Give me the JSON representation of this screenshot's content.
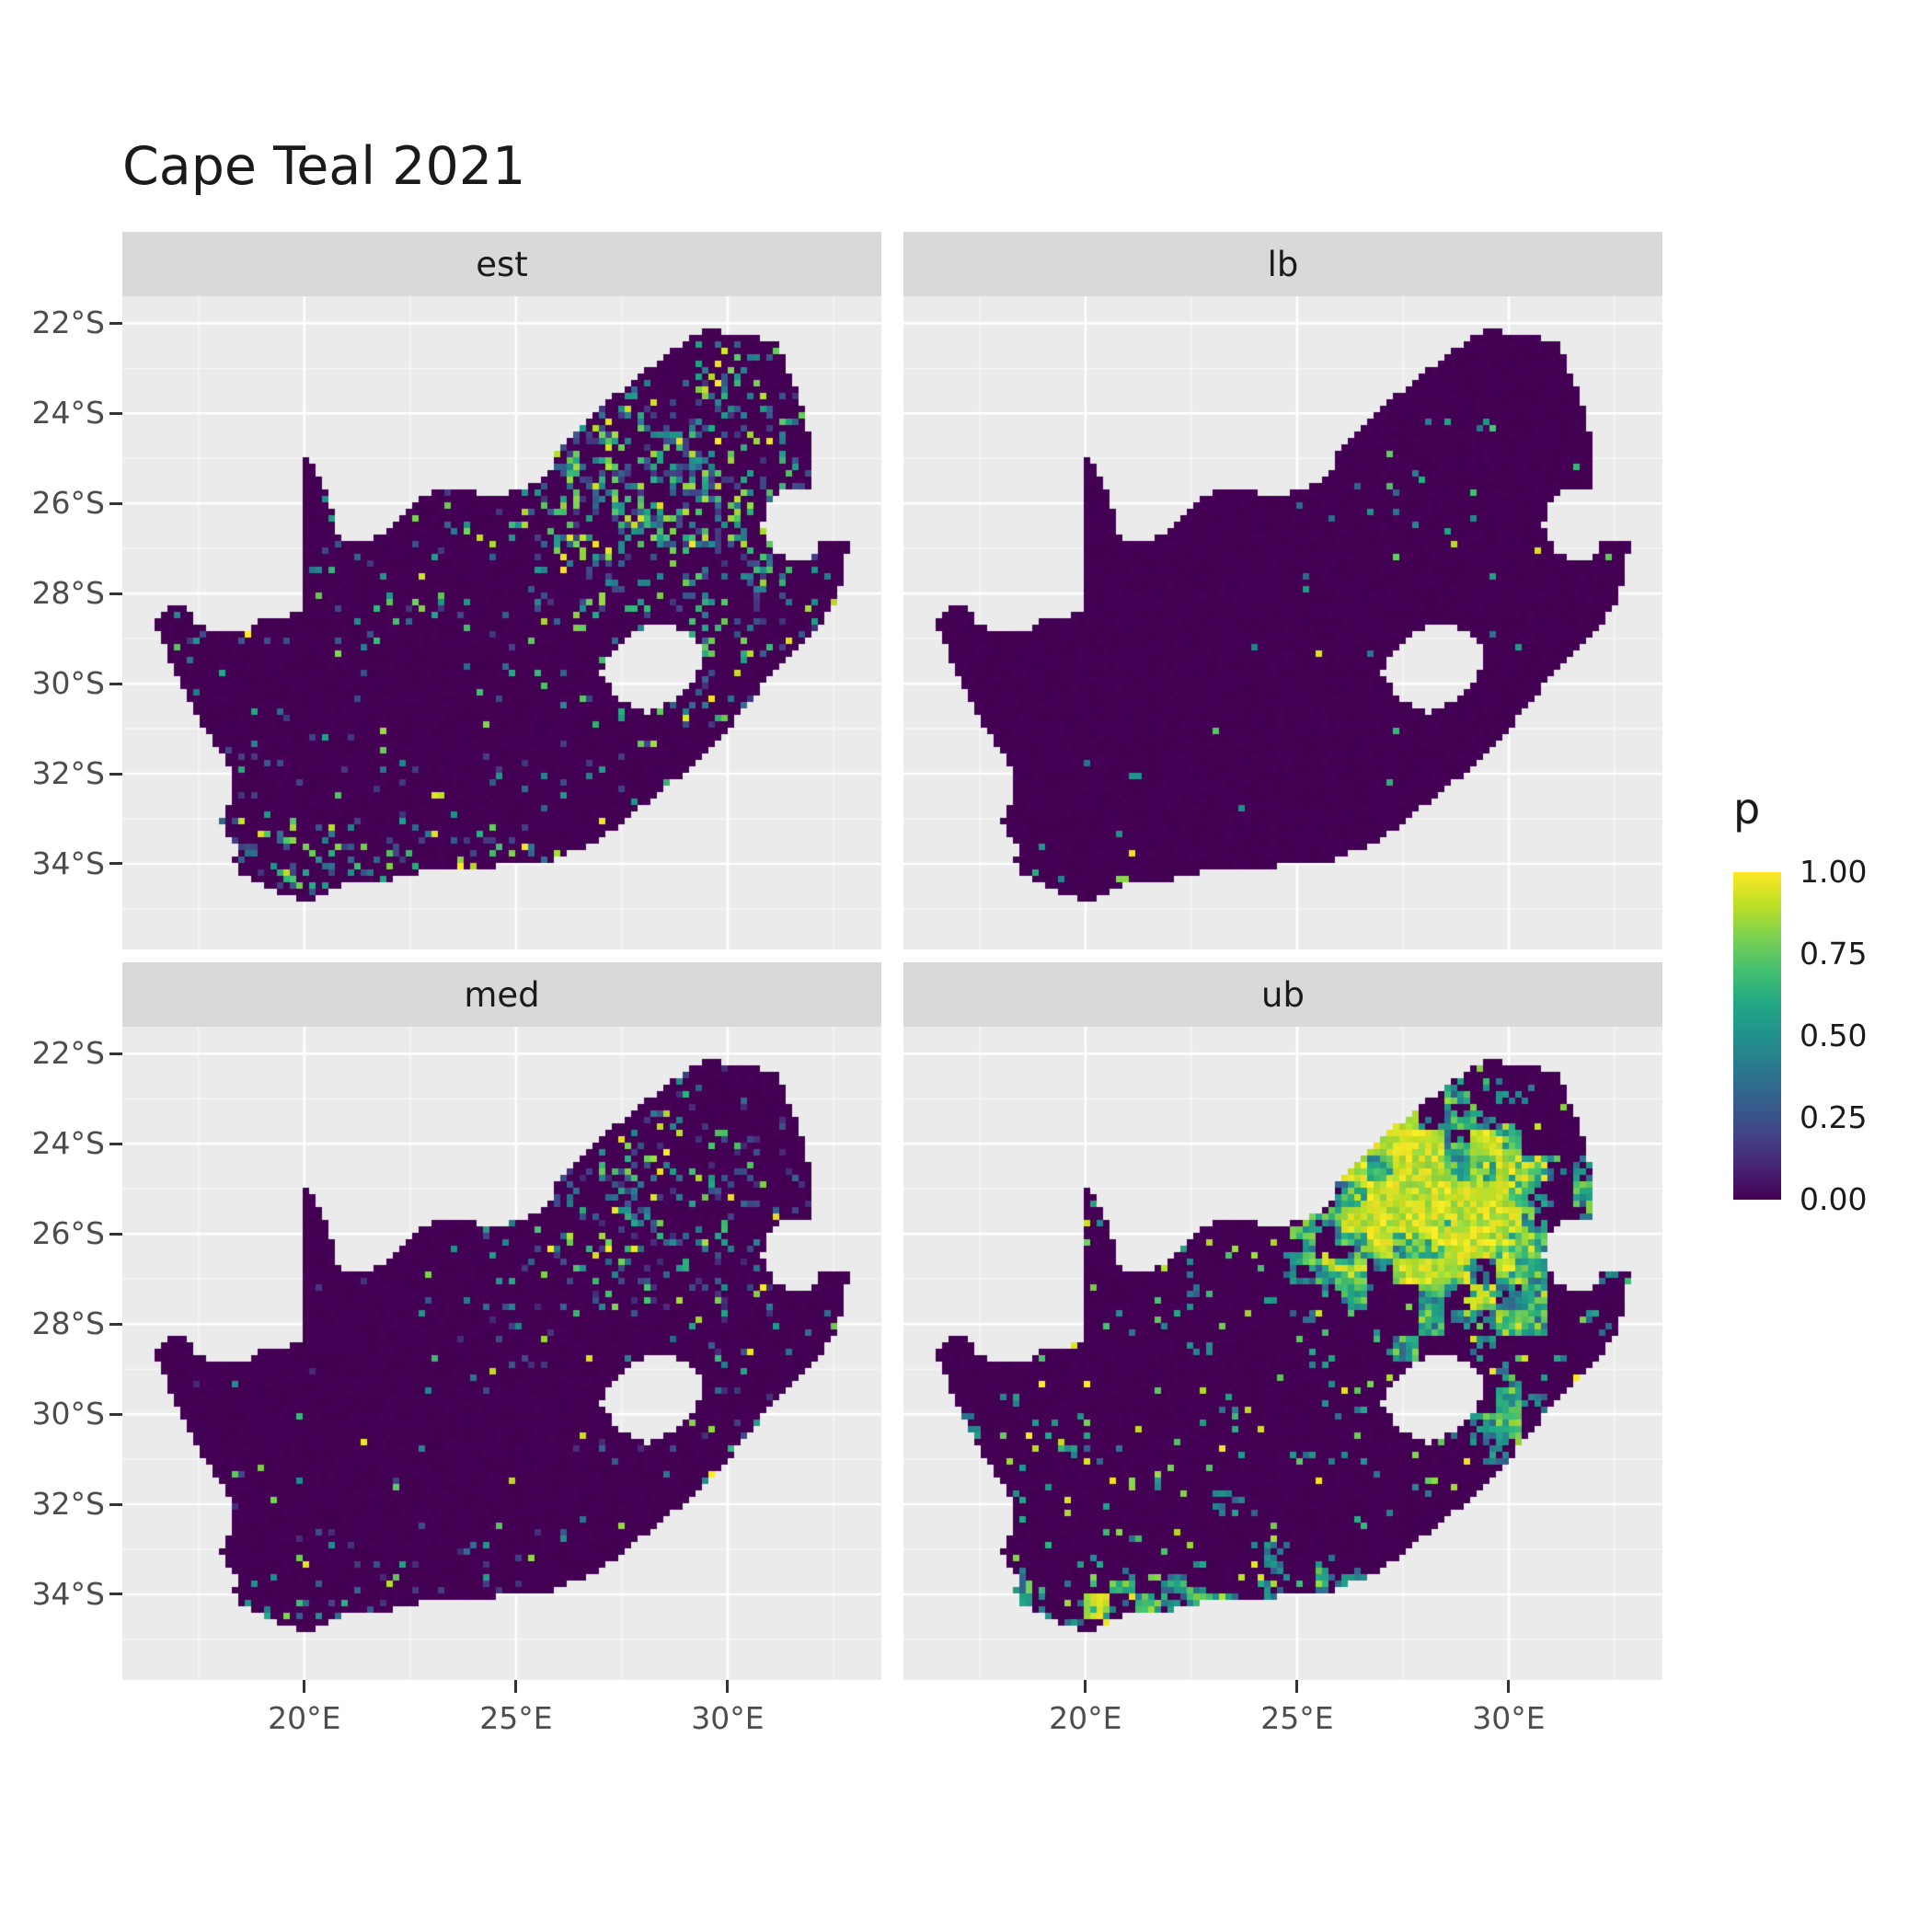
{
  "title": "Cape Teal 2021",
  "facets": [
    {
      "id": "est",
      "label": "est",
      "seed": 11,
      "pattern": "mostly near-zero with scattered mid/high cells, dense hotspot in the north-east and along the southern coast"
    },
    {
      "id": "lb",
      "label": "lb",
      "seed": 22,
      "pattern": "almost entirely zero with a few isolated high-value cells, mainly in the north-east"
    },
    {
      "id": "med",
      "label": "med",
      "seed": 33,
      "pattern": "mostly zero with moderate scattered cells concentrated in the north-east"
    },
    {
      "id": "ub",
      "label": "ub",
      "seed": 44,
      "pattern": "large high-value (yellow) patches in the north-east and along the southern coast, many scattered mid/high cells elsewhere"
    }
  ],
  "axes": {
    "x_ticks": [
      {
        "label": "20°E",
        "lon": 20
      },
      {
        "label": "25°E",
        "lon": 25
      },
      {
        "label": "30°E",
        "lon": 30
      }
    ],
    "y_ticks": [
      {
        "label": "22°S",
        "lat": -22
      },
      {
        "label": "24°S",
        "lat": -24
      },
      {
        "label": "26°S",
        "lat": -26
      },
      {
        "label": "28°S",
        "lat": -28
      },
      {
        "label": "30°S",
        "lat": -30
      },
      {
        "label": "32°S",
        "lat": -32
      },
      {
        "label": "34°S",
        "lat": -34
      }
    ]
  },
  "legend": {
    "title": "p",
    "entries": [
      {
        "label": "1.00",
        "value": 1.0
      },
      {
        "label": "0.75",
        "value": 0.75
      },
      {
        "label": "0.50",
        "value": 0.5
      },
      {
        "label": "0.25",
        "value": 0.25
      },
      {
        "label": "0.00",
        "value": 0.0
      }
    ]
  },
  "colors": {
    "strip_bg": "#D9D9D9",
    "panel_bg": "#EBEBEB",
    "grid_major": "#FFFFFF",
    "tick_mark": "#333333",
    "axis_text": "#4D4D4D",
    "text": "#1A1A1A",
    "na_fill": "#440154",
    "viridis": [
      "#440154",
      "#482475",
      "#414487",
      "#355f8d",
      "#2a788e",
      "#21918c",
      "#22a884",
      "#44bf70",
      "#7ad151",
      "#bddf26",
      "#fde725"
    ]
  },
  "chart_data": {
    "type": "heatmap",
    "title": "Cape Teal 2021",
    "variable": "p",
    "value_range": [
      0,
      1
    ],
    "palette": "viridis",
    "facet_variable_levels": [
      "est",
      "lb",
      "med",
      "ub"
    ],
    "facet_layout": [
      [
        "est",
        "lb"
      ],
      [
        "med",
        "ub"
      ]
    ],
    "region": "South Africa (raster of occupancy probability cells, Lesotho and Eswatini excluded)",
    "x_axis": {
      "tick_labels": [
        "20°E",
        "25°E",
        "30°E"
      ],
      "lon_range": [
        15.7,
        33.63
      ]
    },
    "y_axis": {
      "tick_labels": [
        "22°S",
        "24°S",
        "26°S",
        "28°S",
        "30°S",
        "32°S",
        "34°S"
      ],
      "lat_range": [
        -35.9,
        -21.4
      ]
    },
    "legend": {
      "title": "p",
      "breaks": [
        1.0,
        0.75,
        0.5,
        0.25,
        0.0
      ],
      "labels": [
        "1.00",
        "0.75",
        "0.50",
        "0.25",
        "0.00"
      ],
      "position": "right"
    },
    "facet_summaries": {
      "est": "baseline p ~0 everywhere; scattered cells up to 1.0; strong cluster around 27-30E, 24-27S; speckling along southern coast",
      "lb": "p ~0 nearly everywhere; very sparse isolated non-zero cells, mostly 27-30E 25-27S and south coast",
      "med": "p ~0 mostly; moderate scattered non-zero cells concentrated 26-30E, 24-27S",
      "ub": "large contiguous p ~1 areas 26-30E 24-27S, along southern coast 18-25E ~34S, and eastern coastal strip; widespread scattered mid/high cells"
    },
    "south_africa_outline": [
      [
        16.45,
        -28.6
      ],
      [
        16.8,
        -28.3
      ],
      [
        17.2,
        -28.2
      ],
      [
        17.45,
        -28.7
      ],
      [
        18.0,
        -28.87
      ],
      [
        18.6,
        -28.85
      ],
      [
        19.0,
        -28.55
      ],
      [
        19.6,
        -28.5
      ],
      [
        19.98,
        -28.43
      ],
      [
        19.98,
        -24.88
      ],
      [
        20.35,
        -25.35
      ],
      [
        20.6,
        -26.0
      ],
      [
        20.85,
        -26.8
      ],
      [
        21.3,
        -26.85
      ],
      [
        21.9,
        -26.67
      ],
      [
        22.35,
        -26.2
      ],
      [
        22.85,
        -25.85
      ],
      [
        23.45,
        -25.6
      ],
      [
        24.0,
        -25.75
      ],
      [
        24.7,
        -25.8
      ],
      [
        25.35,
        -25.6
      ],
      [
        25.75,
        -25.4
      ],
      [
        25.95,
        -24.9
      ],
      [
        26.35,
        -24.45
      ],
      [
        26.9,
        -23.9
      ],
      [
        27.6,
        -23.4
      ],
      [
        28.3,
        -22.9
      ],
      [
        28.9,
        -22.45
      ],
      [
        29.4,
        -22.15
      ],
      [
        30.0,
        -22.2
      ],
      [
        30.6,
        -22.3
      ],
      [
        31.2,
        -22.4
      ],
      [
        31.5,
        -23.2
      ],
      [
        31.8,
        -23.9
      ],
      [
        31.95,
        -24.6
      ],
      [
        32.0,
        -25.3
      ],
      [
        32.05,
        -25.72
      ],
      [
        31.35,
        -25.72
      ],
      [
        30.92,
        -26.0
      ],
      [
        30.8,
        -26.5
      ],
      [
        31.05,
        -27.0
      ],
      [
        31.5,
        -27.3
      ],
      [
        31.97,
        -27.32
      ],
      [
        32.15,
        -26.85
      ],
      [
        32.9,
        -26.86
      ],
      [
        32.55,
        -28.2
      ],
      [
        32.0,
        -28.9
      ],
      [
        31.3,
        -29.5
      ],
      [
        30.7,
        -30.2
      ],
      [
        30.0,
        -31.0
      ],
      [
        29.2,
        -31.8
      ],
      [
        28.4,
        -32.4
      ],
      [
        27.6,
        -33.0
      ],
      [
        26.8,
        -33.6
      ],
      [
        26.0,
        -33.85
      ],
      [
        25.6,
        -34.05
      ],
      [
        25.0,
        -33.95
      ],
      [
        24.2,
        -34.15
      ],
      [
        23.4,
        -34.05
      ],
      [
        22.6,
        -34.2
      ],
      [
        21.8,
        -34.4
      ],
      [
        21.0,
        -34.4
      ],
      [
        20.4,
        -34.7
      ],
      [
        20.0,
        -34.83
      ],
      [
        19.4,
        -34.62
      ],
      [
        18.8,
        -34.38
      ],
      [
        18.43,
        -34.2
      ],
      [
        18.3,
        -33.9
      ],
      [
        18.42,
        -33.65
      ],
      [
        18.0,
        -33.1
      ],
      [
        18.3,
        -32.6
      ],
      [
        18.25,
        -31.9
      ],
      [
        17.7,
        -31.1
      ],
      [
        17.1,
        -30.1
      ],
      [
        16.75,
        -29.3
      ]
    ],
    "lesotho_hole": [
      [
        27.75,
        -28.9
      ],
      [
        28.4,
        -28.62
      ],
      [
        29.1,
        -28.92
      ],
      [
        29.45,
        -29.35
      ],
      [
        29.25,
        -29.95
      ],
      [
        28.7,
        -30.35
      ],
      [
        28.05,
        -30.65
      ],
      [
        27.45,
        -30.35
      ],
      [
        27.0,
        -29.75
      ],
      [
        27.3,
        -29.25
      ]
    ]
  }
}
